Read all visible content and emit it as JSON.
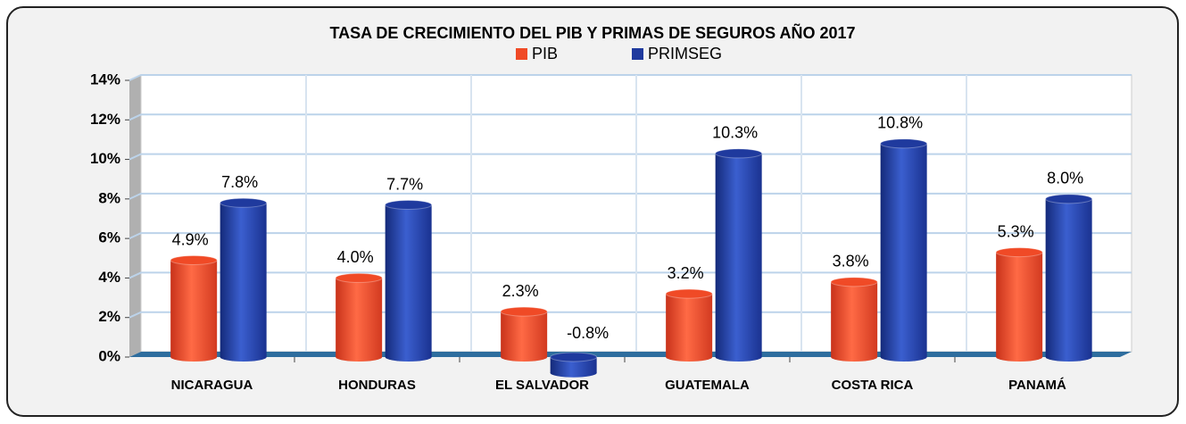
{
  "chart_data": {
    "type": "bar",
    "title": "TASA DE CRECIMIENTO DEL PIB Y PRIMAS DE SEGUROS AÑO 2017",
    "categories": [
      "NICARAGUA",
      "HONDURAS",
      "EL SALVADOR",
      "GUATEMALA",
      "COSTA RICA",
      "PANAMÁ"
    ],
    "series": [
      {
        "name": "PIB",
        "color": "#f04a26",
        "values": [
          4.9,
          4.0,
          2.3,
          3.2,
          3.8,
          5.3
        ],
        "value_labels": [
          "4.9%",
          "4.0%",
          "2.3%",
          "3.2%",
          "3.8%",
          "5.3%"
        ]
      },
      {
        "name": "PRIMSEG",
        "color": "#1f3a9e",
        "values": [
          7.8,
          7.7,
          -0.8,
          10.3,
          10.8,
          8.0
        ],
        "value_labels": [
          "7.8%",
          "7.7%",
          "-0.8%",
          "10.3%",
          "10.8%",
          "8.0%"
        ]
      }
    ],
    "ylim": [
      0,
      14
    ],
    "yticks": [
      {
        "value": 0,
        "label": "0%"
      },
      {
        "value": 2,
        "label": "2%"
      },
      {
        "value": 4,
        "label": "4%"
      },
      {
        "value": 6,
        "label": "6%"
      },
      {
        "value": 8,
        "label": "8%"
      },
      {
        "value": 10,
        "label": "10%"
      },
      {
        "value": 12,
        "label": "12%"
      },
      {
        "value": 14,
        "label": "14%"
      }
    ],
    "grid": true,
    "legend": "top"
  }
}
